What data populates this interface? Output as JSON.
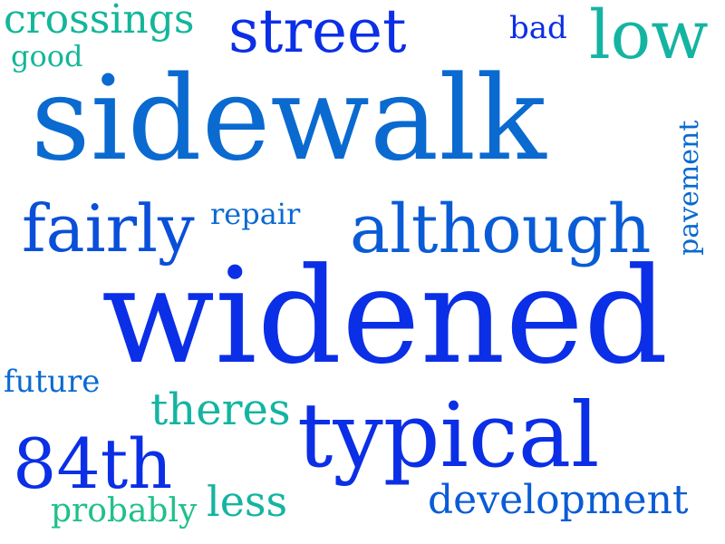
{
  "words": [
    {
      "id": "sidewalk",
      "text": "sidewalk",
      "color": "#0a6ad0"
    },
    {
      "id": "widened",
      "text": "widened",
      "color": "#0b2fe6"
    },
    {
      "id": "typical",
      "text": "typical",
      "color": "#0b2fe6"
    },
    {
      "id": "street",
      "text": "street",
      "color": "#0b2fe6"
    },
    {
      "id": "although",
      "text": "although",
      "color": "#0a5cd6"
    },
    {
      "id": "fairly",
      "text": "fairly",
      "color": "#0a4fd9"
    },
    {
      "id": "low",
      "text": "low",
      "color": "#14b4a2"
    },
    {
      "id": "crossings",
      "text": "crossings",
      "color": "#14b69a"
    },
    {
      "id": "good",
      "text": "good",
      "color": "#14b69a"
    },
    {
      "id": "bad",
      "text": "bad",
      "color": "#0b2fe6"
    },
    {
      "id": "pavement",
      "text": "pavement",
      "color": "#0a6ad0"
    },
    {
      "id": "repair",
      "text": "repair",
      "color": "#0a6ad0"
    },
    {
      "id": "future",
      "text": "future",
      "color": "#0a6ad0"
    },
    {
      "id": "theres",
      "text": "theres",
      "color": "#14b4a2"
    },
    {
      "id": "84th",
      "text": "84th",
      "color": "#0b2fe6"
    },
    {
      "id": "probably",
      "text": "probably",
      "color": "#1fc08c"
    },
    {
      "id": "less",
      "text": "less",
      "color": "#14b4a2"
    },
    {
      "id": "development",
      "text": "development",
      "color": "#0a5cd6"
    }
  ]
}
